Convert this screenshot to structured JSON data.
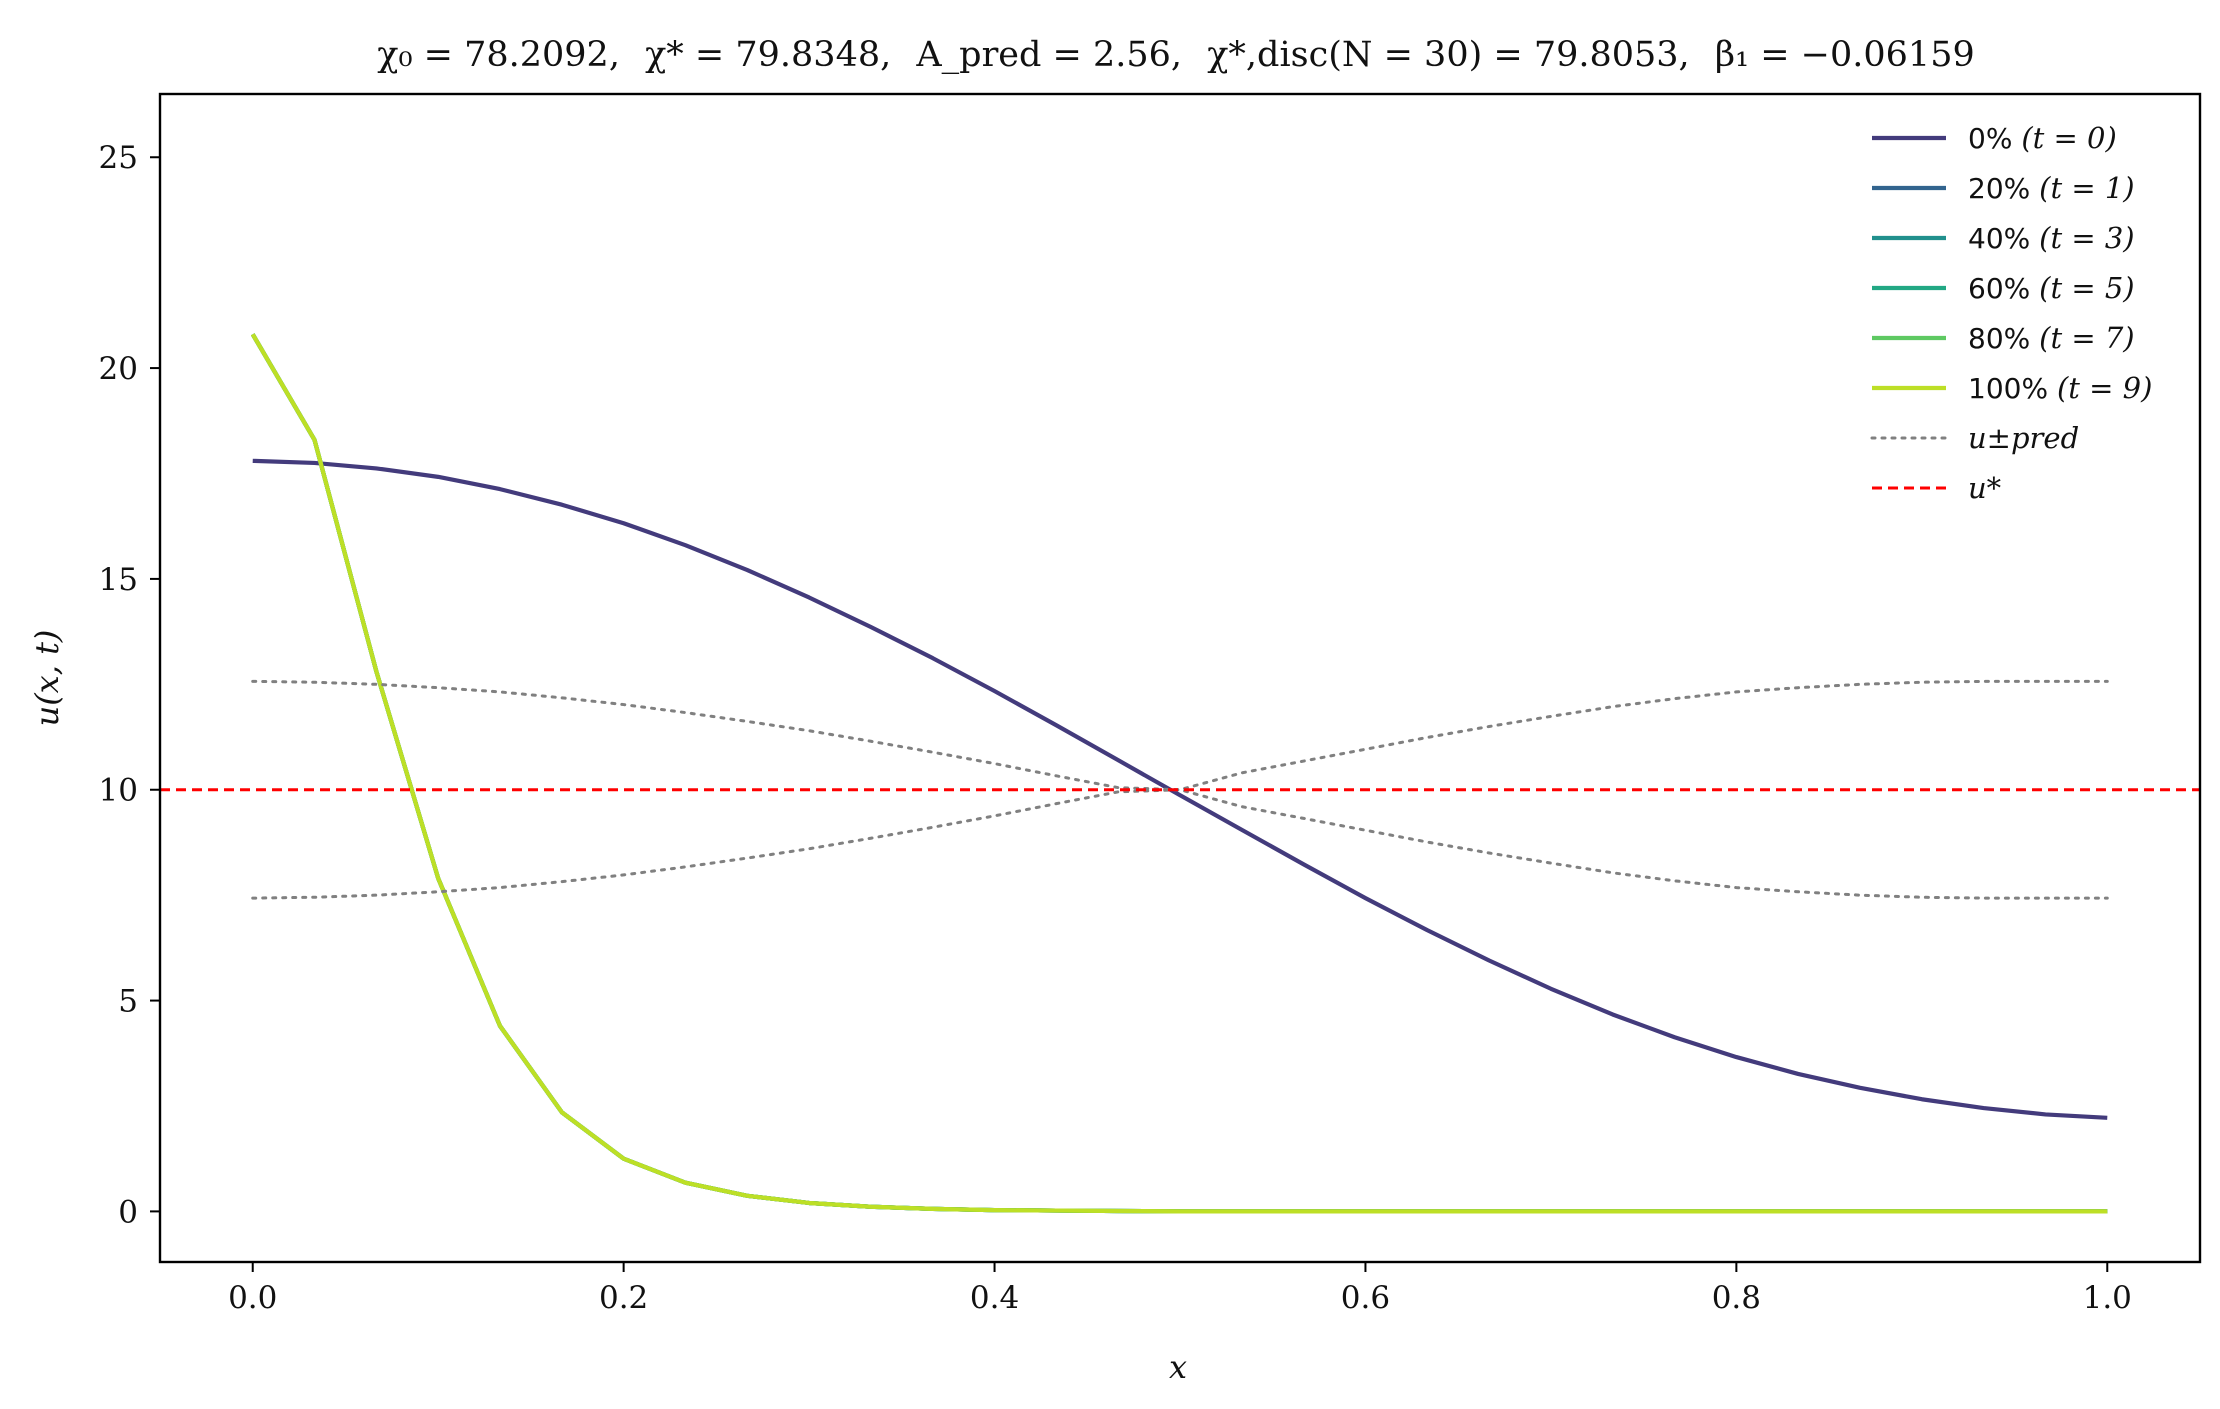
{
  "chart_data": {
    "type": "line",
    "title": "χ₀ = 78.2092,  χ* = 79.8348,  A_pred = 2.56,  χ*,disc(N = 30) = 79.8053,  β₁ = −0.06159",
    "title_parts": {
      "chi0": "χ₀ = 78.2092,",
      "chistar": "χ* = 79.8348,",
      "apred": "A_pred = 2.56,",
      "chidisc": "χ*,disc(N = 30) = 79.8053,",
      "beta": "β₁ = −0.06159"
    },
    "xlabel": "x",
    "ylabel": "u(x, t)",
    "xlim": [
      -0.05,
      1.05
    ],
    "ylim": [
      -1.2,
      26.5
    ],
    "xticks": [
      0.0,
      0.2,
      0.4,
      0.6,
      0.8,
      1.0
    ],
    "xtick_labels": [
      "0.0",
      "0.2",
      "0.4",
      "0.6",
      "0.8",
      "1.0"
    ],
    "yticks": [
      0,
      5,
      10,
      15,
      20,
      25
    ],
    "ytick_labels": [
      "0",
      "5",
      "10",
      "15",
      "20",
      "25"
    ],
    "grid": false,
    "legend_position": "top-right",
    "x": [
      0.0,
      0.0333,
      0.0667,
      0.1,
      0.1333,
      0.1667,
      0.2,
      0.2333,
      0.2667,
      0.3,
      0.3333,
      0.3667,
      0.4,
      0.4333,
      0.4667,
      0.5,
      0.5333,
      0.5667,
      0.6,
      0.6333,
      0.6667,
      0.7,
      0.7333,
      0.7667,
      0.8,
      0.8333,
      0.8667,
      0.9,
      0.9333,
      0.9667,
      1.0
    ],
    "series": [
      {
        "name": "0% (t = 0)",
        "legend_pct": "0%",
        "legend_t": "(t = 0)",
        "color": "#433b7c",
        "style": "solid",
        "values": [
          17.8,
          17.75,
          17.62,
          17.42,
          17.13,
          16.76,
          16.32,
          15.8,
          15.21,
          14.56,
          13.86,
          13.12,
          12.34,
          11.53,
          10.7,
          9.87,
          9.05,
          8.23,
          7.43,
          6.67,
          5.95,
          5.28,
          4.67,
          4.13,
          3.66,
          3.26,
          2.93,
          2.66,
          2.45,
          2.3,
          2.22
        ]
      },
      {
        "name": "20% (t = 1)",
        "legend_pct": "20%",
        "legend_t": "(t = 1)",
        "color": "#32648e",
        "style": "solid",
        "values": [
          20.8,
          18.3,
          12.8,
          7.9,
          4.4,
          2.35,
          1.25,
          0.68,
          0.37,
          0.2,
          0.11,
          0.06,
          0.03,
          0.02,
          0.01,
          0.0,
          0.0,
          0.0,
          0.0,
          0.0,
          0.0,
          0.0,
          0.0,
          0.0,
          0.0,
          0.0,
          0.0,
          0.0,
          0.0,
          0.0,
          0.0
        ]
      },
      {
        "name": "40% (t = 3)",
        "legend_pct": "40%",
        "legend_t": "(t = 3)",
        "color": "#21908d",
        "style": "solid",
        "values": [
          20.8,
          18.3,
          12.8,
          7.9,
          4.4,
          2.35,
          1.25,
          0.68,
          0.37,
          0.2,
          0.11,
          0.06,
          0.03,
          0.02,
          0.01,
          0.0,
          0.0,
          0.0,
          0.0,
          0.0,
          0.0,
          0.0,
          0.0,
          0.0,
          0.0,
          0.0,
          0.0,
          0.0,
          0.0,
          0.0,
          0.0
        ]
      },
      {
        "name": "60% (t = 5)",
        "legend_pct": "60%",
        "legend_t": "(t = 5)",
        "color": "#22a884",
        "style": "solid",
        "values": [
          20.8,
          18.3,
          12.8,
          7.9,
          4.4,
          2.35,
          1.25,
          0.68,
          0.37,
          0.2,
          0.11,
          0.06,
          0.03,
          0.02,
          0.01,
          0.0,
          0.0,
          0.0,
          0.0,
          0.0,
          0.0,
          0.0,
          0.0,
          0.0,
          0.0,
          0.0,
          0.0,
          0.0,
          0.0,
          0.0,
          0.0
        ]
      },
      {
        "name": "80% (t = 7)",
        "legend_pct": "80%",
        "legend_t": "(t = 7)",
        "color": "#5ec962",
        "style": "solid",
        "values": [
          20.8,
          18.3,
          12.8,
          7.9,
          4.4,
          2.35,
          1.25,
          0.68,
          0.37,
          0.2,
          0.11,
          0.06,
          0.03,
          0.02,
          0.01,
          0.0,
          0.0,
          0.0,
          0.0,
          0.0,
          0.0,
          0.0,
          0.0,
          0.0,
          0.0,
          0.0,
          0.0,
          0.0,
          0.0,
          0.0,
          0.0
        ]
      },
      {
        "name": "100% (t = 9)",
        "legend_pct": "100%",
        "legend_t": "(t = 9)",
        "color": "#bddf26",
        "style": "solid",
        "values": [
          20.8,
          18.3,
          12.8,
          7.9,
          4.4,
          2.35,
          1.25,
          0.68,
          0.37,
          0.2,
          0.11,
          0.06,
          0.03,
          0.02,
          0.01,
          0.0,
          0.0,
          0.0,
          0.0,
          0.0,
          0.0,
          0.0,
          0.0,
          0.0,
          0.0,
          0.0,
          0.0,
          0.0,
          0.0,
          0.0,
          0.0
        ]
      },
      {
        "name": "u±pred (upper)",
        "legend_label": "u±pred",
        "color": "#808080",
        "style": "dotted",
        "values": [
          12.57,
          12.55,
          12.5,
          12.42,
          12.32,
          12.18,
          12.02,
          11.83,
          11.62,
          11.4,
          11.15,
          10.89,
          10.62,
          10.33,
          10.05,
          10.0,
          10.4,
          10.68,
          10.96,
          11.24,
          11.5,
          11.74,
          11.97,
          12.16,
          12.32,
          12.42,
          12.5,
          12.55,
          12.57,
          12.57,
          12.57
        ]
      },
      {
        "name": "u±pred (lower)",
        "legend_label": "u±pred",
        "color": "#808080",
        "style": "dotted",
        "values": [
          7.43,
          7.45,
          7.5,
          7.58,
          7.68,
          7.82,
          7.98,
          8.17,
          8.38,
          8.6,
          8.85,
          9.11,
          9.38,
          9.67,
          9.95,
          10.0,
          9.6,
          9.32,
          9.04,
          8.76,
          8.5,
          8.26,
          8.03,
          7.84,
          7.68,
          7.58,
          7.5,
          7.45,
          7.43,
          7.43,
          7.43
        ]
      },
      {
        "name": "u*",
        "legend_label": "u*",
        "color": "#ff0000",
        "style": "dashed",
        "constant": 10
      }
    ]
  }
}
